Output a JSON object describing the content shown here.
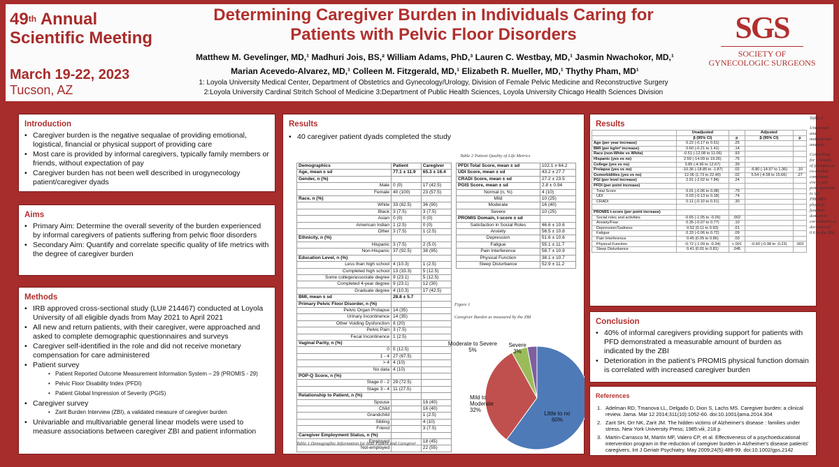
{
  "meeting": {
    "ordinal": "49",
    "ordinal_suffix": "th",
    "line1": "Annual",
    "line2": "Scientific Meeting",
    "dates": "March 19-22, 2023",
    "location": "Tucson, AZ"
  },
  "title": "Determining Caregiver Burden in Individuals Caring for Patients with Pelvic Floor Disorders",
  "authors_line1": "Matthew M. Gevelinger, MD,¹ Madhuri Jois, BS,² William Adams, PhD,³ Lauren C. Westbay, MD,¹ Jasmin Nwachokor, MD,¹",
  "authors_line2": "Marian Acevedo-Alvarez, MD,¹ Colleen M. Fitzgerald, MD,¹ Elizabeth R. Mueller, MD,¹ Thythy Pham, MD¹",
  "affiliation1": "1: Loyola University Medical Center, Department of Obstetrics and Gynecology/Urology, Division of Female Pelvic Medicine and Reconstructive Surgery",
  "affiliation2": "2:Loyola University Cardinal Stritch School of Medicine 3:Department of Public Health Sciences, Loyola University Chicago Health Sciences Division",
  "logo": {
    "abbr": "SGS",
    "line1": "SOCIETY OF",
    "line2": "GYNECOLOGIC SURGEONS"
  },
  "introduction": {
    "heading": "Introduction",
    "items": [
      "Caregiver burden is the negative sequalae of providing emotional, logistical, financial or physical support of providing care",
      "Most care is provided by informal caregivers, typically family members or friends, without expectation of pay",
      "Caregiver burden has not been well described in urogynecology patient/caregiver dyads"
    ]
  },
  "aims": {
    "heading": "Aims",
    "items": [
      "Primary Aim: Determine the overall severity of the burden experienced by informal caregivers of patients suffering from pelvic floor disorders",
      "Secondary Aim: Quantify and correlate specific quality of life metrics with the degree of caregiver burden"
    ]
  },
  "methods": {
    "heading": "Methods",
    "item1": "IRB approved cross-sectional study (LU# 214467) conducted at Loyola University of all eligible dyads from May 2021 to April 2021",
    "item2": "All new and return patients, with their caregiver, were approached and asked to complete demographic questionnaires and surveys",
    "item3": "Caregiver self-identified in the role and did not receive monetary compensation for care administered",
    "item4": "Patient survey",
    "patient_survey": [
      "Patient Reported Outcome Measurement Information System – 29 (PROMIS - 29)",
      "Pelvic Floor Disability Index (PFDI)",
      "Patient Global Impression of Severity (PGIS)"
    ],
    "item5": "Caregiver survey",
    "caregiver_survey": [
      "Zarit Burden Interview (ZBI), a validated measure of caregiver burden"
    ],
    "item6": "Univariable and multivariable general linear models were used to measure associations between caregiver ZBI and patient information"
  },
  "results_left": {
    "heading": "Results",
    "bullet": "40 caregiver patient dyads completed the study"
  },
  "table1": {
    "caption": "Table  1  Demographic Information for both Patient and Caregiver",
    "rows": [
      [
        "b",
        "Demographics",
        "Patient",
        "Caregiver"
      ],
      [
        "b",
        "Age, mean ± sd",
        "77.1 ± 11.9",
        "65.3 ± 16.4"
      ],
      [
        "b",
        "Gender, n (%)",
        "",
        ""
      ],
      [
        "r",
        "Male",
        "0 (0)",
        "17 (42.5)"
      ],
      [
        "r",
        "Female",
        "40 (100)",
        "23 (57.5)"
      ],
      [
        "b",
        "Race, n (%)",
        "",
        ""
      ],
      [
        "r",
        "White",
        "33 (82.5)",
        "36 (90)"
      ],
      [
        "r",
        "Black",
        "3 (7.5)",
        "3 (7.5)"
      ],
      [
        "r",
        "Asian",
        "0 (0)",
        "0 (0)"
      ],
      [
        "r",
        "American Indian",
        "1 (2.5)",
        "0 (0)"
      ],
      [
        "r",
        "Other",
        "3 (7.5)",
        "1 (2.5)"
      ],
      [
        "b",
        "Ethnicity, n (%)",
        "",
        ""
      ],
      [
        "r",
        "Hispanic",
        "3 (7.5)",
        "2 (5.0)"
      ],
      [
        "r",
        "Non-Hispanic",
        "37 (92.5)",
        "38 (95)"
      ],
      [
        "b",
        "Education Level, n (%)",
        "",
        ""
      ],
      [
        "r",
        "Less than high school",
        "4 (10.3)",
        "1 (2.5)"
      ],
      [
        "r",
        "Completed high school",
        "13 (33.3)",
        "5 (12.5)"
      ],
      [
        "r",
        "Some college/associate degree",
        "9 (23.1)",
        "5 (12.5)"
      ],
      [
        "r",
        "Completed 4-year degree",
        "9 (23.1)",
        "12 (30)"
      ],
      [
        "r",
        "Graduate degree",
        "4 (10.3)",
        "17 (42.5)"
      ],
      [
        "b",
        "BMI, mean ± sd",
        "28.8 ± 5.7",
        ""
      ],
      [
        "b",
        "Primary Pelvic Floor Disorder, n (%)",
        "",
        ""
      ],
      [
        "r",
        "Pelvic Organ Prolapse",
        "14 (35)",
        ""
      ],
      [
        "r",
        "Urinary Incontinence",
        "14 (35)",
        ""
      ],
      [
        "r",
        "Other Voiding Dysfunction",
        "8 (20)",
        ""
      ],
      [
        "r",
        "Pelvic Pain",
        "3 (7.5)",
        ""
      ],
      [
        "r",
        "Fecal Incontinence",
        "1 (2.5)",
        ""
      ],
      [
        "b",
        "Vaginal Parity, n (%)",
        "",
        ""
      ],
      [
        "r",
        "0",
        "5 (12.5)",
        ""
      ],
      [
        "r",
        "1 - 4",
        "27 (67.5)",
        ""
      ],
      [
        "r",
        "> 4",
        "4 (10)",
        ""
      ],
      [
        "r",
        "No data",
        "4 (10)",
        ""
      ],
      [
        "b",
        "POP-Q Score, n (%)",
        "",
        ""
      ],
      [
        "r",
        "Stage 0 - 2",
        "29 (72.5)",
        ""
      ],
      [
        "r",
        "Stage 3 - 4",
        "11 (27.5)",
        ""
      ],
      [
        "b",
        "Relationship to Patient, n (%)",
        "",
        ""
      ],
      [
        "r",
        "Spouse",
        "",
        "16 (40)"
      ],
      [
        "r",
        "Child",
        "",
        "16 (40)"
      ],
      [
        "r",
        "Grandchild",
        "",
        "1 (2.5)"
      ],
      [
        "r",
        "Sibling",
        "",
        "4 (10)"
      ],
      [
        "r",
        "Friend",
        "",
        "3 (7.5)"
      ],
      [
        "b",
        "Caregiver Employment Status, n (%)",
        "",
        ""
      ],
      [
        "r",
        "Employed",
        "",
        "18 (45)"
      ],
      [
        "r",
        "Not-employed",
        "",
        "22 (55)"
      ]
    ]
  },
  "table2": {
    "caption": "Table  2  Patient Quality of Life Metrics",
    "rows": [
      [
        "b",
        "PFDI Total Score, mean ± sd",
        "102.1 ± 64.2"
      ],
      [
        "b",
        "UDI Score, mean ± sd",
        "43.2 ± 27.7"
      ],
      [
        "b",
        "CRADI Score, mean ± sd",
        "27.2 ± 23.5"
      ],
      [
        "b",
        "PGIS Score, mean ± sd",
        "2.8  ± 0.94"
      ],
      [
        "r",
        "Normal (n, %)",
        "4 (10)"
      ],
      [
        "r",
        "Mild",
        "10 (25)"
      ],
      [
        "r",
        "Moderate",
        "16 (40)"
      ],
      [
        "r",
        "Severe",
        "10 (25)"
      ],
      [
        "b",
        "PROMIS Domain, t-score ± sd",
        ""
      ],
      [
        "r",
        "Satisfaction in Social Roles",
        "46.6 ± 10.6"
      ],
      [
        "r",
        "Anxiety",
        "56.5 ± 10.8"
      ],
      [
        "r",
        "Depression",
        "51.6 ± 10.6"
      ],
      [
        "r",
        "Fatigue",
        "55.1 ± 11.7"
      ],
      [
        "r",
        "Pain Interference",
        "58.7 ± 10.9"
      ],
      [
        "r",
        "Physical Function",
        "38.1 ± 10.7"
      ],
      [
        "r",
        "Sleep Disturbance",
        "52.9 ± 11.2"
      ]
    ]
  },
  "figure1": {
    "label": "Figure 1",
    "caption": "Caregiver Burden as measured by the ZBI"
  },
  "chart_data": {
    "type": "pie",
    "title": "Caregiver Burden as measured by the ZBI",
    "categories": [
      "Little to no",
      "Mild to Moderate",
      "Moderate to Severe",
      "Severe"
    ],
    "values": [
      60,
      32,
      5,
      3
    ],
    "labels": [
      "Little to no 60%",
      "Mild to Moderate 32%",
      "Moderate to Severe 5%",
      "Severe 3%"
    ],
    "colors": [
      "#4e7ab8",
      "#c0504d",
      "#9bbb59",
      "#7c5fa0"
    ]
  },
  "results_right": {
    "heading": "Results"
  },
  "table3": {
    "note": [
      "Table  3",
      "Univariate and multivariate analysis.",
      "Controlling for a history of prolapse or co-morbid conditions, every, one point increase to the PROMIS physical function domain is correlated to a decrease of 0.6 in the ZBI."
    ],
    "head1": [
      "",
      "Unadjusted",
      "",
      "Adjusted",
      ""
    ],
    "head2": [
      "",
      "β (95% CI)",
      "p",
      "β (95% CI)",
      "p"
    ],
    "rows": [
      [
        "Age (per year increase)",
        "0.22 (-0.17 to 0.61)",
        ".25",
        "",
        ""
      ],
      [
        "BMI (per kg/m² increase)",
        "0.60 (-0.21 to 1.41)",
        ".14",
        "",
        ""
      ],
      [
        "Race (non-White vs White)",
        "-0.51 (-12.08 to 11.06)",
        ".93",
        "",
        ""
      ],
      [
        "Hispanic (yes vs no)",
        "2.59 (-14.09 to 19.26)",
        ".76",
        "",
        ""
      ],
      [
        "College (yes vs no)",
        "3.85 (-4.96 to 12.67)",
        ".39",
        "",
        ""
      ],
      [
        "Prolapse (yes vs no)",
        "-10.36 (-18.85 to -1.87)",
        ".02",
        "-6.80 (-14.97 to 1.36)",
        ".10"
      ],
      [
        "Comorbidities (yes vs no)",
        "12.06 (1.73 to 22.40)",
        ".02",
        "5.54 (-4.58 to 15.66)",
        ".27"
      ],
      [
        "PGI (per level increase)",
        "2.91 (-2.02 to 7.84)",
        ".24",
        "",
        ""
      ],
      [
        "PFDI (per point increase)",
        "",
        "",
        "",
        ""
      ],
      [
        "   Total Score",
        "0.01 (-0.06 to 0.08)",
        ".79",
        "",
        ""
      ],
      [
        "   UDI",
        "0.03 (-0.13 to 0.18)",
        ".74",
        "",
        ""
      ],
      [
        "   CRADI",
        "0.11 (-0.10 to 0.31)",
        ".30",
        "",
        ""
      ],
      [
        "",
        "",
        "",
        "",
        ""
      ],
      [
        "PROMIS t-score (per point increase)",
        "",
        "",
        "",
        ""
      ],
      [
        "   Social roles and activities",
        "-0.65 (-1.05 to -0.26)",
        ".002",
        "",
        ""
      ],
      [
        "   Anxiety/Fear",
        "0.35 (-0.07 to 0.77)",
        ".10",
        "",
        ""
      ],
      [
        "   Depression/Sadness",
        "0.52 (0.11 to 0.93)",
        ".01",
        "",
        ""
      ],
      [
        "   Fatigue",
        "0.33 (-0.06 to 0.72)",
        ".09",
        "",
        ""
      ],
      [
        "   Pain Interference",
        "0.45 (0.05 to 0.86)",
        ".03",
        "",
        ""
      ],
      [
        "   Physical Function",
        "-0.72 (-1.09 to -0.34)",
        "<.001",
        "-0.60 (-0.98 to -0.23)",
        ".003"
      ],
      [
        "   Sleep Disturbance",
        "0.41 (0.01 to 0.81)",
        ".045",
        "",
        ""
      ]
    ]
  },
  "conclusion": {
    "heading": "Conclusion",
    "items": [
      "40% of informal caregivers providing support for patients with PFD demonstrated a measurable amount of burden as indicated by the ZBI",
      "Deterioration in the patient’s PROMIS physical function domain is correlated with increased caregiver burden"
    ]
  },
  "references": {
    "heading": "References",
    "items": [
      "Adelman RD, Tmanova LL, Delgado D, Dion S, Lachs MS. Caregiver burden: a clinical review. Jama. Mar 12 2014;311(10):1052-60. doi:10.1001/jama.2014.304",
      "Zarit SH, Orr NK, Zarit JM. The hidden victims of Alzheimer's disease : families under stress. New York University Press; 1985:viii, 218 p",
      "Martín-Carrasco M, Martín MF, Valero CP, et al. Effectiveness of a psychoeducational intervention program in the reduction of caregiver burden in Alzheimer's disease patients' caregivers. Int J Geriatr Psychiatry. May 2009;24(5):489-99. doi:10.1002/gps.2142"
    ]
  }
}
